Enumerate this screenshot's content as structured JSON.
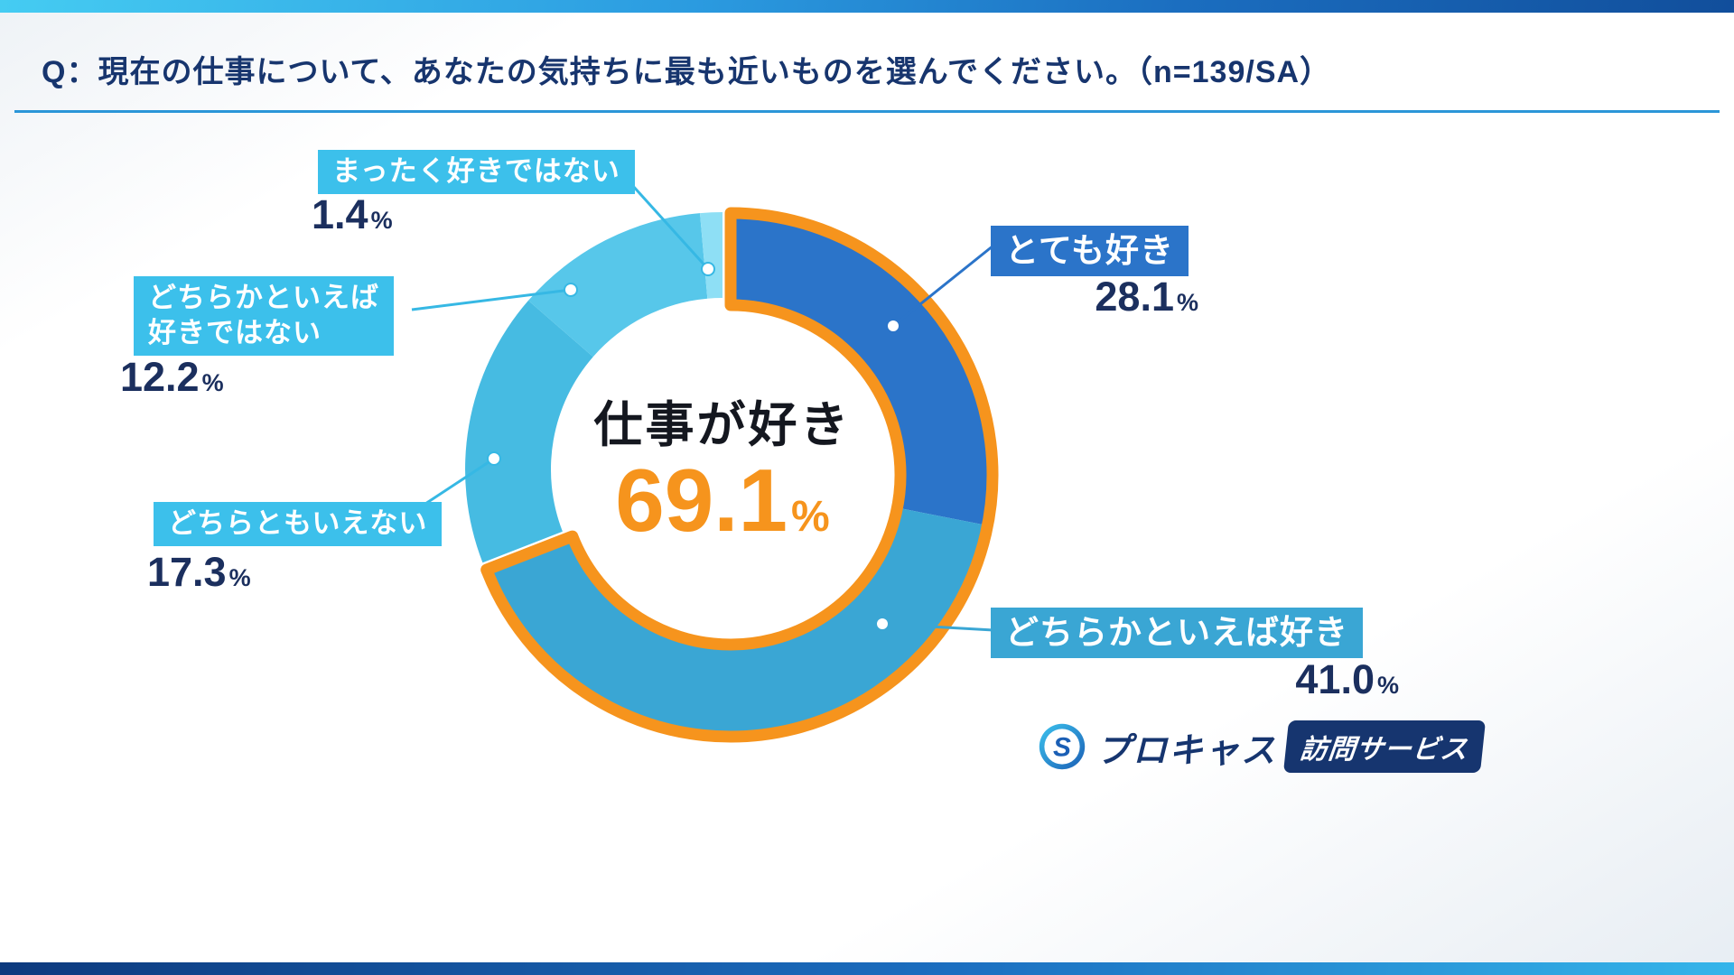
{
  "page": {
    "question": "Q：現在の仕事について、あなたの気持ちに最も近いものを選んでください。（n=139/SA）"
  },
  "chart_data": {
    "type": "pie",
    "style": "donut",
    "unit": "%",
    "title": "仕事が好き",
    "center": {
      "label": "仕事が好き",
      "value": "69.1",
      "unit": "%"
    },
    "segments": [
      {
        "label": "とても好き",
        "value": 28.1,
        "display": "28.1",
        "color": "#2b74c9"
      },
      {
        "label": "どちらかといえば好き",
        "value": 41.0,
        "display": "41.0",
        "color": "#3aa6d4"
      },
      {
        "label": "どちらともいえない",
        "value": 17.3,
        "display": "17.3",
        "color": "#46bbe2"
      },
      {
        "label": "どちらかといえば\n好きではない",
        "value": 12.2,
        "display": "12.2",
        "color": "#57c7ea"
      },
      {
        "label": "まったく好きではない",
        "value": 1.4,
        "display": "1.4",
        "color": "#8edff5"
      }
    ],
    "highlight": {
      "percent": 69.1,
      "color": "#f6941d",
      "label": "仕事が好き"
    },
    "legend_position": "callouts",
    "grid": false
  },
  "logo": {
    "brand": "プロキャス",
    "badge": "訪問サービス",
    "icon": "procas-s-icon"
  },
  "colors": {
    "accent_orange": "#f6941d",
    "navy_text": "#1b2f5e",
    "header_blue": "#17356e",
    "chip_cyan": "#3cc0eb"
  }
}
